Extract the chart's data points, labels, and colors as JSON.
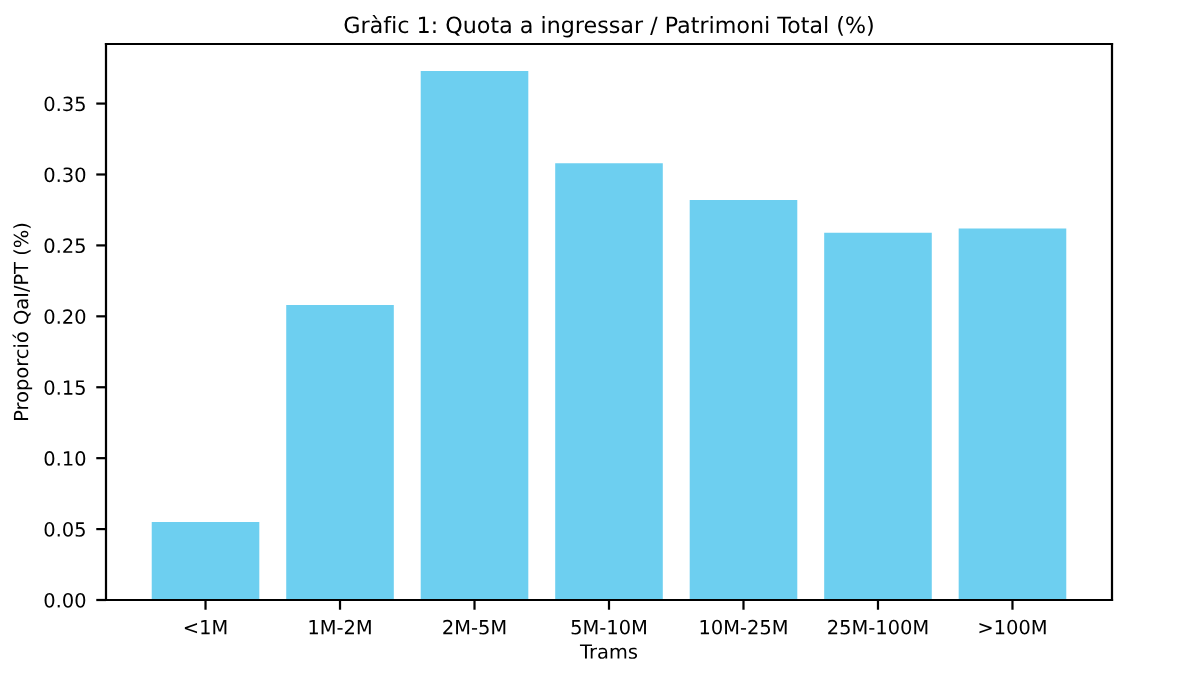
{
  "chart_data": {
    "type": "bar",
    "title": "Gràfic 1: Quota a ingressar / Patrimoni Total (%)",
    "xlabel": "Trams",
    "ylabel": "Proporció QaI/PT (%)",
    "categories": [
      "<1M",
      "1M-2M",
      "2M-5M",
      "5M-10M",
      "10M-25M",
      "25M-100M",
      ">100M"
    ],
    "values": [
      0.055,
      0.208,
      0.373,
      0.308,
      0.282,
      0.259,
      0.262
    ],
    "color": "#6dcff0",
    "ylim": [
      0,
      0.392
    ],
    "yticks": [
      {
        "value": 0,
        "label": "0.00"
      },
      {
        "value": 0.05,
        "label": "0.05"
      },
      {
        "value": 0.1,
        "label": "0.10"
      },
      {
        "value": 0.15,
        "label": "0.15"
      },
      {
        "value": 0.2,
        "label": "0.20"
      },
      {
        "value": 0.25,
        "label": "0.25"
      },
      {
        "value": 0.3,
        "label": "0.30"
      },
      {
        "value": 0.35,
        "label": "0.35"
      }
    ],
    "grid": false,
    "legend": false
  }
}
